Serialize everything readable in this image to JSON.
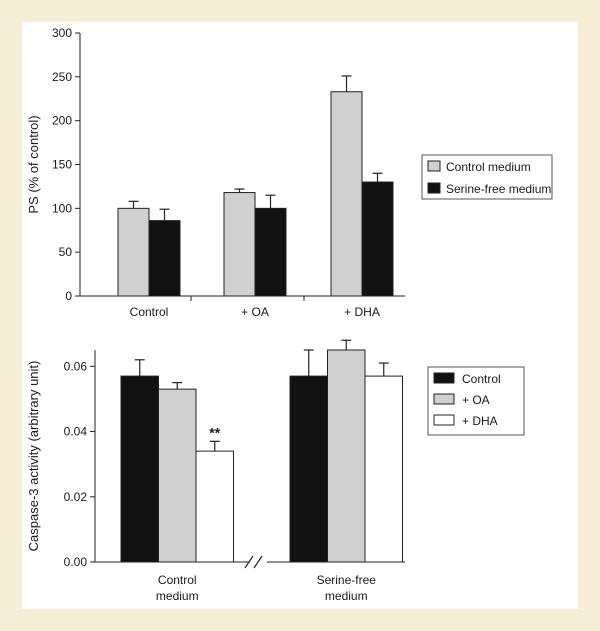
{
  "chart_data": [
    {
      "type": "bar",
      "ylabel": "PS (% of control)",
      "ylim": [
        0,
        300
      ],
      "yticks": [
        0,
        50,
        100,
        150,
        200,
        250,
        300
      ],
      "categories": [
        "Control",
        "+ OA",
        "+ DHA"
      ],
      "series": [
        {
          "name": "Control medium",
          "color": "#d0d0d0",
          "values": [
            100,
            118,
            233
          ],
          "errors": [
            8,
            4,
            18
          ]
        },
        {
          "name": "Serine-free medium",
          "color": "#111111",
          "values": [
            86,
            100,
            130
          ],
          "errors": [
            13,
            15,
            10
          ]
        }
      ],
      "legend_position": "right"
    },
    {
      "type": "bar",
      "ylabel": "Caspase-3 activity (arbitrary unit)",
      "ylim": [
        0,
        0.065
      ],
      "yticks": [
        0.0,
        0.02,
        0.04,
        0.06
      ],
      "ytick_labels": [
        "0.00",
        "0.02",
        "0.04",
        "0.06"
      ],
      "categories": [
        [
          "Control",
          "medium"
        ],
        [
          "Serine-free",
          "medium"
        ]
      ],
      "series": [
        {
          "name": "Control",
          "color": "#111111",
          "values": [
            0.057,
            0.057
          ],
          "errors": [
            0.005,
            0.008
          ]
        },
        {
          "name": "+ OA",
          "color": "#d0d0d0",
          "values": [
            0.053,
            0.065
          ],
          "errors": [
            0.002,
            0.003
          ]
        },
        {
          "name": "+ DHA",
          "color": "#ffffff",
          "values": [
            0.034,
            0.057
          ],
          "errors": [
            0.003,
            0.004
          ]
        }
      ],
      "annotations": [
        {
          "text": "**",
          "group": 0,
          "series": 2
        }
      ],
      "axis_break": "//",
      "legend_position": "right"
    }
  ]
}
